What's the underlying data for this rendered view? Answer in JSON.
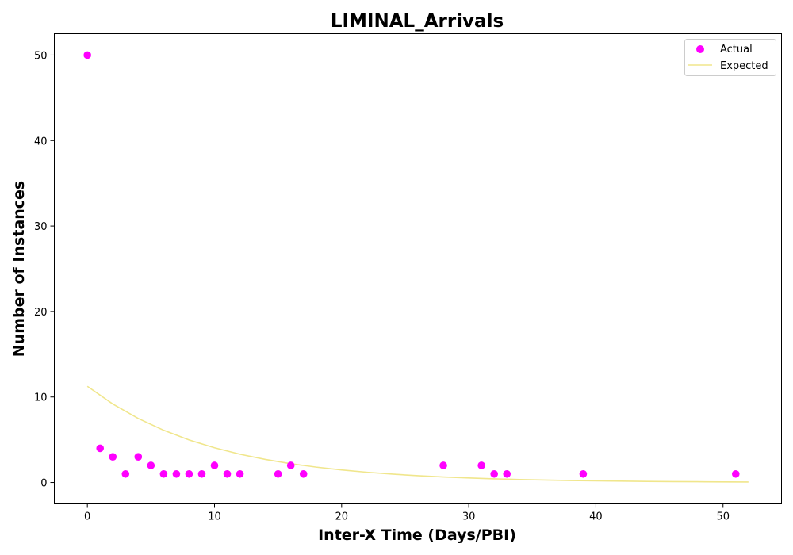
{
  "chart_data": {
    "type": "scatter",
    "title": "LIMINAL_Arrivals",
    "xlabel": "Inter-X Time (Days/PBI)",
    "ylabel": "Number of Instances",
    "xlim": [
      -2.6,
      54.6
    ],
    "ylim": [
      -2.5,
      52.5
    ],
    "xticks": [
      0,
      10,
      20,
      30,
      40,
      50
    ],
    "yticks": [
      0,
      10,
      20,
      30,
      40,
      50
    ],
    "grid": false,
    "legend_position": "top-right",
    "series": [
      {
        "name": "Actual",
        "kind": "scatter",
        "color": "#ff00ff",
        "points": [
          {
            "x": 0,
            "y": 50
          },
          {
            "x": 1,
            "y": 4
          },
          {
            "x": 2,
            "y": 3
          },
          {
            "x": 3,
            "y": 1
          },
          {
            "x": 4,
            "y": 3
          },
          {
            "x": 5,
            "y": 2
          },
          {
            "x": 6,
            "y": 1
          },
          {
            "x": 7,
            "y": 1
          },
          {
            "x": 8,
            "y": 1
          },
          {
            "x": 9,
            "y": 1
          },
          {
            "x": 10,
            "y": 2
          },
          {
            "x": 11,
            "y": 1
          },
          {
            "x": 12,
            "y": 1
          },
          {
            "x": 15,
            "y": 1
          },
          {
            "x": 16,
            "y": 2
          },
          {
            "x": 17,
            "y": 1
          },
          {
            "x": 28,
            "y": 2
          },
          {
            "x": 31,
            "y": 2
          },
          {
            "x": 32,
            "y": 1
          },
          {
            "x": 33,
            "y": 1
          },
          {
            "x": 39,
            "y": 1
          },
          {
            "x": 51,
            "y": 1
          }
        ]
      },
      {
        "name": "Expected",
        "kind": "line",
        "color": "#f0e68c",
        "points": [
          {
            "x": 0,
            "y": 11.25
          },
          {
            "x": 2,
            "y": 9.18
          },
          {
            "x": 4,
            "y": 7.49
          },
          {
            "x": 6,
            "y": 6.11
          },
          {
            "x": 8,
            "y": 4.98
          },
          {
            "x": 10,
            "y": 4.06
          },
          {
            "x": 12,
            "y": 3.31
          },
          {
            "x": 14,
            "y": 2.7
          },
          {
            "x": 16,
            "y": 2.2
          },
          {
            "x": 18,
            "y": 1.8
          },
          {
            "x": 20,
            "y": 1.47
          },
          {
            "x": 22,
            "y": 1.2
          },
          {
            "x": 24,
            "y": 0.98
          },
          {
            "x": 26,
            "y": 0.8
          },
          {
            "x": 28,
            "y": 0.65
          },
          {
            "x": 30,
            "y": 0.53
          },
          {
            "x": 32,
            "y": 0.43
          },
          {
            "x": 34,
            "y": 0.35
          },
          {
            "x": 36,
            "y": 0.29
          },
          {
            "x": 38,
            "y": 0.23
          },
          {
            "x": 40,
            "y": 0.19
          },
          {
            "x": 42,
            "y": 0.16
          },
          {
            "x": 44,
            "y": 0.13
          },
          {
            "x": 46,
            "y": 0.1
          },
          {
            "x": 48,
            "y": 0.09
          },
          {
            "x": 50,
            "y": 0.07
          },
          {
            "x": 52,
            "y": 0.06
          }
        ]
      }
    ]
  }
}
